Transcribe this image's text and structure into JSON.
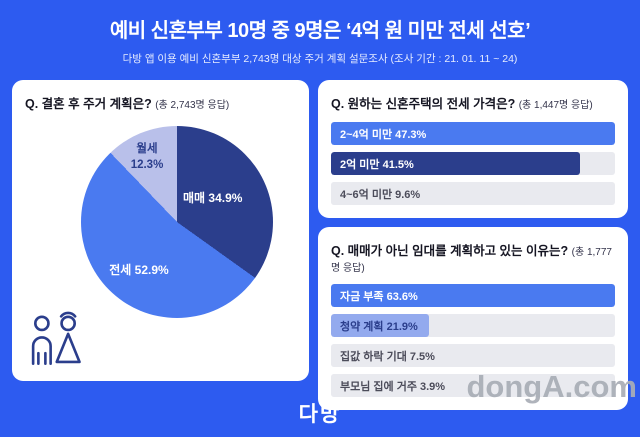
{
  "header": {
    "title": "예비 신혼부부 10명 중 9명은 ‘4억 원 미만 전세 선호’",
    "subtitle": "다방 앱 이용 예비 신혼부부 2,743명 대상 주거 계획 설문조사 (조사 기간 : 21. 01. 11 ~ 24)"
  },
  "chart_data": [
    {
      "type": "pie",
      "title": "Q. 결혼 후 주거 계획은?",
      "respondents": "(총 2,743명 응답)",
      "labels": [
        "매매",
        "전세",
        "월세"
      ],
      "values": [
        34.9,
        52.9,
        12.3
      ],
      "colors": [
        "#2b3e8c",
        "#4a7af0",
        "#b9c0ea"
      ],
      "displays": [
        "매매 34.9%",
        "전세 52.9%",
        "월세 12.3%"
      ]
    },
    {
      "type": "bar",
      "title": "Q. 원하는 신혼주택의 전세 가격은?",
      "respondents": "(총 1,447명 응답)",
      "categories": [
        "2~4억 미만",
        "2억 미만",
        "4~6억 미만"
      ],
      "values": [
        47.3,
        41.5,
        9.6
      ],
      "displays": [
        "2~4억 미만 47.3%",
        "2억 미만 41.5%",
        "4~6억 미만 9.6%"
      ]
    },
    {
      "type": "bar",
      "title": "Q. 매매가 아닌 임대를 계획하고 있는 이유는?",
      "respondents": "(총 1,777명 응답)",
      "categories": [
        "자금 부족",
        "청약 계획",
        "집값 하락 기대",
        "부모님 집에 거주"
      ],
      "values": [
        63.6,
        21.9,
        7.5,
        3.9
      ],
      "displays": [
        "자금 부족 63.6%",
        "청약 계획 21.9%",
        "집값 하락 기대 7.5%",
        "부모님 집에 거주 3.9%"
      ]
    }
  ],
  "footer": {
    "logo": "다방",
    "watermark": "dongA.com"
  }
}
